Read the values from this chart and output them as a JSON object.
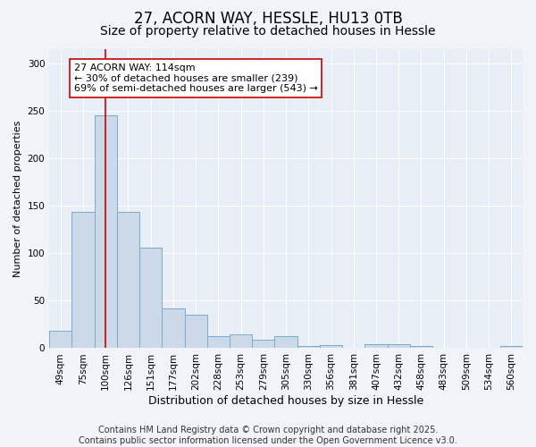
{
  "title1": "27, ACORN WAY, HESSLE, HU13 0TB",
  "title2": "Size of property relative to detached houses in Hessle",
  "xlabel": "Distribution of detached houses by size in Hessle",
  "ylabel": "Number of detached properties",
  "categories": [
    "49sqm",
    "75sqm",
    "100sqm",
    "126sqm",
    "151sqm",
    "177sqm",
    "202sqm",
    "228sqm",
    "253sqm",
    "279sqm",
    "305sqm",
    "330sqm",
    "356sqm",
    "381sqm",
    "407sqm",
    "432sqm",
    "458sqm",
    "483sqm",
    "509sqm",
    "534sqm",
    "560sqm"
  ],
  "values": [
    18,
    144,
    245,
    144,
    106,
    42,
    35,
    13,
    15,
    9,
    13,
    2,
    3,
    0,
    4,
    4,
    2,
    0,
    0,
    0,
    2
  ],
  "bar_color": "#ccd9e8",
  "bar_edge_color": "#7aabcc",
  "vline_x_index": 2,
  "vline_color": "#cc0000",
  "annotation_text": "27 ACORN WAY: 114sqm\n← 30% of detached houses are smaller (239)\n69% of semi-detached houses are larger (543) →",
  "annotation_box_facecolor": "#ffffff",
  "annotation_box_edgecolor": "#cc0000",
  "ylim": [
    0,
    315
  ],
  "yticks": [
    0,
    50,
    100,
    150,
    200,
    250,
    300
  ],
  "plot_bg_color": "#e8eef5",
  "fig_bg_color": "#f0f4f8",
  "footer_text": "Contains HM Land Registry data © Crown copyright and database right 2025.\nContains public sector information licensed under the Open Government Licence v3.0.",
  "title1_fontsize": 12,
  "title2_fontsize": 10,
  "annotation_fontsize": 8,
  "footer_fontsize": 7,
  "xlabel_fontsize": 9,
  "ylabel_fontsize": 8,
  "tick_fontsize": 7.5
}
